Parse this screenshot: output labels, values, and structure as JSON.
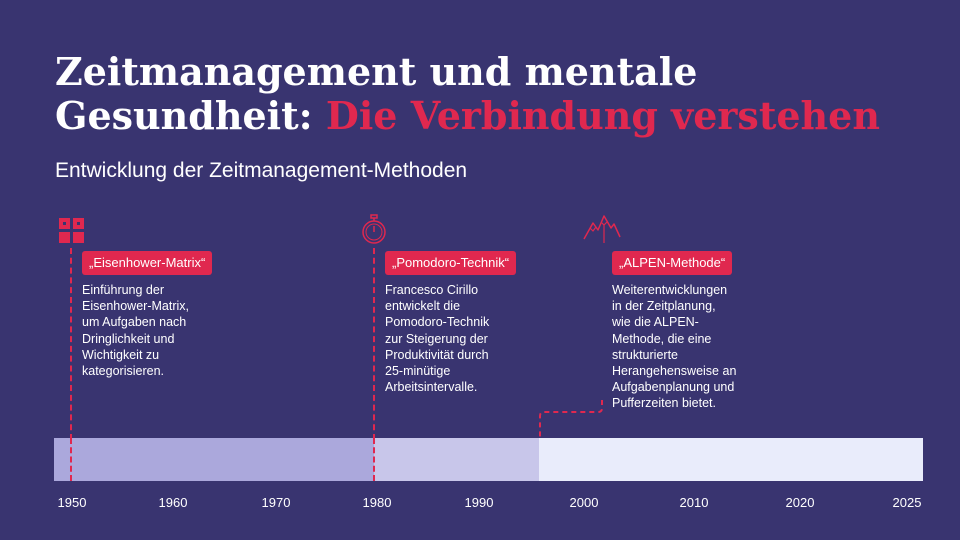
{
  "title": {
    "line1": "Zeitmanagement und mentale",
    "line2_plain": "Gesundheit: ",
    "line2_accent": "Die Verbindung verstehen"
  },
  "subtitle": "Entwicklung der Zeitmanagement-Methoden",
  "colors": {
    "background": "#393470",
    "accent": "#e0284f",
    "bar_1950_1980": "#aba8dc",
    "bar_1980_1996": "#c8c6ea",
    "bar_1996_2025": "#e9ecfb"
  },
  "milestones": [
    {
      "icon": "grid-icon",
      "label": "„Eisenhower-Matrix“",
      "text": [
        "Einführung der",
        "Eisenhower-Matrix,",
        "um Aufgaben nach",
        "Dringlichkeit und",
        "Wichtigkeit zu",
        "kategorisieren."
      ]
    },
    {
      "icon": "stopwatch-icon",
      "label": "„Pomodoro-Technik“",
      "text": [
        "Francesco Cirillo",
        "entwickelt die",
        "Pomodoro-Technik",
        "zur Steigerung der",
        "Produktivität durch",
        "25-minütige",
        "Arbeitsintervalle."
      ]
    },
    {
      "icon": "mountain-icon",
      "label": "„ALPEN-Methode“",
      "text": [
        "Weiterentwicklungen",
        "in der Zeitplanung,",
        "wie die ALPEN-",
        "Methode, die eine",
        "strukturierte",
        "Herangehensweise an",
        "Aufgabenplanung und",
        "Pufferzeiten bietet."
      ]
    }
  ],
  "axis": {
    "years": [
      "1950",
      "1960",
      "1970",
      "1980",
      "1990",
      "2000",
      "2010",
      "2020",
      "2025"
    ]
  }
}
